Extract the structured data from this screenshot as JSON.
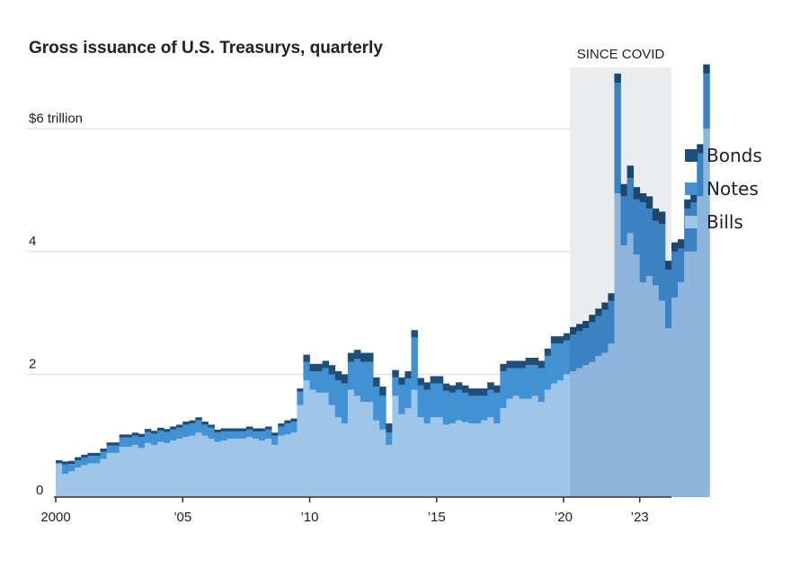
{
  "chart_data": {
    "type": "area",
    "stacked": true,
    "title": "Gross issuance of U.S. Treasurys, quarterly",
    "ylabel": "",
    "xlabel": "",
    "ylim": [
      0,
      7
    ],
    "xlim": [
      2000,
      2024.25
    ],
    "y_ticks": [
      {
        "value": 0,
        "label": "0"
      },
      {
        "value": 2,
        "label": "2"
      },
      {
        "value": 4,
        "label": "4"
      },
      {
        "value": 6,
        "label": "$6 trillion"
      }
    ],
    "x_ticks": [
      {
        "value": 2000,
        "label": "2000"
      },
      {
        "value": 2005,
        "label": "’05"
      },
      {
        "value": 2010,
        "label": "’10"
      },
      {
        "value": 2015,
        "label": "’15"
      },
      {
        "value": 2020,
        "label": "’20"
      },
      {
        "value": 2023,
        "label": "’23"
      }
    ],
    "shaded_region": {
      "label": "SINCE COVID",
      "from": 2020.25,
      "to": 2024.25
    },
    "start_year": 2000,
    "quarters_per_year": 4,
    "series": [
      {
        "name": "Bills",
        "color": "#9dc6ea",
        "shaded_color": "#8db5dc",
        "values": [
          0.55,
          0.38,
          0.42,
          0.48,
          0.52,
          0.55,
          0.55,
          0.62,
          0.72,
          0.72,
          0.82,
          0.82,
          0.85,
          0.8,
          0.88,
          0.85,
          0.9,
          0.88,
          0.92,
          0.95,
          0.98,
          1.0,
          1.05,
          1.0,
          0.95,
          0.9,
          0.92,
          0.95,
          0.95,
          0.95,
          0.98,
          0.95,
          0.92,
          0.95,
          0.85,
          1.0,
          1.02,
          1.05,
          1.5,
          1.9,
          1.75,
          1.7,
          1.7,
          1.5,
          1.3,
          1.2,
          1.75,
          1.65,
          1.55,
          1.55,
          1.25,
          1.1,
          0.85,
          1.65,
          1.35,
          1.45,
          1.75,
          1.3,
          1.2,
          1.3,
          1.3,
          1.18,
          1.2,
          1.25,
          1.22,
          1.2,
          1.2,
          1.25,
          1.3,
          1.2,
          1.45,
          1.6,
          1.65,
          1.6,
          1.6,
          1.65,
          1.55,
          1.75,
          1.85,
          1.9,
          2.0,
          2.05,
          2.1,
          2.15,
          2.2,
          2.3,
          2.35,
          2.5,
          4.95,
          4.1,
          4.3,
          3.95,
          3.5,
          3.6,
          3.45,
          3.2,
          2.75,
          3.25,
          3.5,
          4.0,
          4.0,
          4.9,
          6.0
        ]
      },
      {
        "name": "Notes",
        "color": "#4191d3",
        "shaded_color": "#3b82c2",
        "values": [
          0.0,
          0.15,
          0.12,
          0.12,
          0.12,
          0.12,
          0.12,
          0.12,
          0.12,
          0.12,
          0.15,
          0.15,
          0.15,
          0.18,
          0.18,
          0.18,
          0.18,
          0.18,
          0.18,
          0.18,
          0.2,
          0.2,
          0.2,
          0.18,
          0.18,
          0.15,
          0.15,
          0.12,
          0.12,
          0.12,
          0.12,
          0.12,
          0.15,
          0.15,
          0.15,
          0.15,
          0.18,
          0.18,
          0.22,
          0.3,
          0.3,
          0.35,
          0.4,
          0.5,
          0.6,
          0.65,
          0.45,
          0.6,
          0.65,
          0.65,
          0.55,
          0.55,
          0.2,
          0.3,
          0.48,
          0.48,
          0.85,
          0.52,
          0.55,
          0.55,
          0.55,
          0.55,
          0.5,
          0.5,
          0.48,
          0.45,
          0.45,
          0.4,
          0.45,
          0.5,
          0.6,
          0.5,
          0.45,
          0.5,
          0.55,
          0.5,
          0.55,
          0.55,
          0.65,
          0.6,
          0.55,
          0.6,
          0.6,
          0.6,
          0.65,
          0.65,
          0.7,
          0.7,
          1.8,
          0.8,
          0.9,
          0.9,
          1.3,
          1.1,
          1.05,
          1.25,
          0.95,
          0.75,
          0.55,
          0.7,
          0.8,
          0.7,
          0.9
        ]
      },
      {
        "name": "Bonds",
        "color": "#1f4e79",
        "shaded_color": "#1c466e",
        "values": [
          0.05,
          0.05,
          0.05,
          0.05,
          0.05,
          0.05,
          0.05,
          0.05,
          0.05,
          0.05,
          0.05,
          0.05,
          0.05,
          0.05,
          0.05,
          0.05,
          0.05,
          0.05,
          0.05,
          0.05,
          0.05,
          0.05,
          0.05,
          0.05,
          0.05,
          0.05,
          0.05,
          0.05,
          0.05,
          0.05,
          0.05,
          0.05,
          0.05,
          0.05,
          0.05,
          0.05,
          0.05,
          0.05,
          0.05,
          0.12,
          0.12,
          0.12,
          0.12,
          0.15,
          0.15,
          0.15,
          0.15,
          0.15,
          0.15,
          0.15,
          0.15,
          0.15,
          0.15,
          0.12,
          0.12,
          0.12,
          0.12,
          0.12,
          0.12,
          0.12,
          0.12,
          0.12,
          0.12,
          0.12,
          0.12,
          0.12,
          0.12,
          0.12,
          0.12,
          0.12,
          0.12,
          0.12,
          0.12,
          0.12,
          0.12,
          0.12,
          0.12,
          0.12,
          0.12,
          0.12,
          0.12,
          0.12,
          0.12,
          0.12,
          0.12,
          0.12,
          0.12,
          0.12,
          0.15,
          0.2,
          0.2,
          0.2,
          0.15,
          0.2,
          0.2,
          0.2,
          0.15,
          0.15,
          0.15,
          0.15,
          0.15,
          0.15,
          0.15
        ]
      }
    ],
    "legend": [
      "Bonds",
      "Notes",
      "Bills"
    ],
    "legend_position": "right"
  }
}
